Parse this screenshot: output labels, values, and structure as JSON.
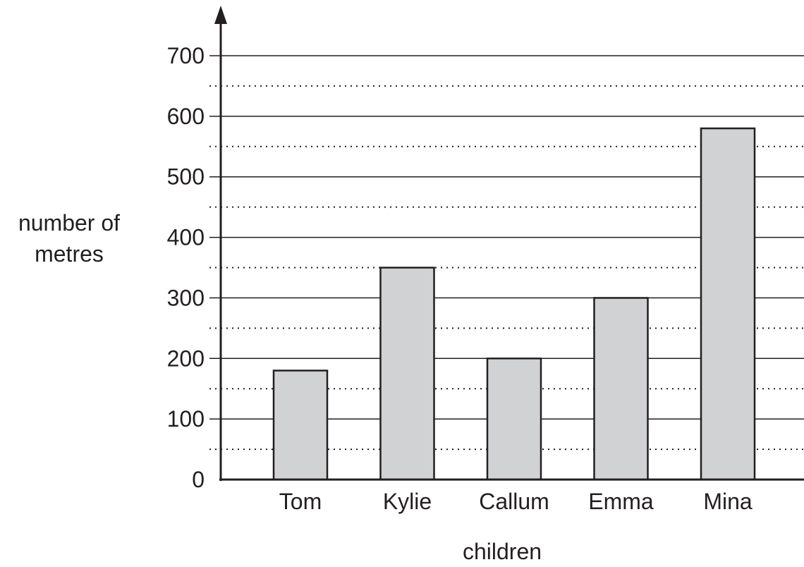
{
  "chart_data": {
    "type": "bar",
    "categories": [
      "Tom",
      "Kylie",
      "Callum",
      "Emma",
      "Mina"
    ],
    "values": [
      180,
      350,
      200,
      300,
      580
    ],
    "xlabel": "children",
    "ylabel_lines": [
      "number of",
      "metres"
    ],
    "ylim": [
      0,
      700
    ],
    "y_ticks": [
      0,
      100,
      200,
      300,
      400,
      500,
      600,
      700
    ],
    "y_minor_ticks": [
      50,
      150,
      250,
      350,
      450,
      550,
      650
    ],
    "grid": true,
    "colors": {
      "bar_fill": "#d1d2d4",
      "stroke": "#231f20"
    }
  }
}
